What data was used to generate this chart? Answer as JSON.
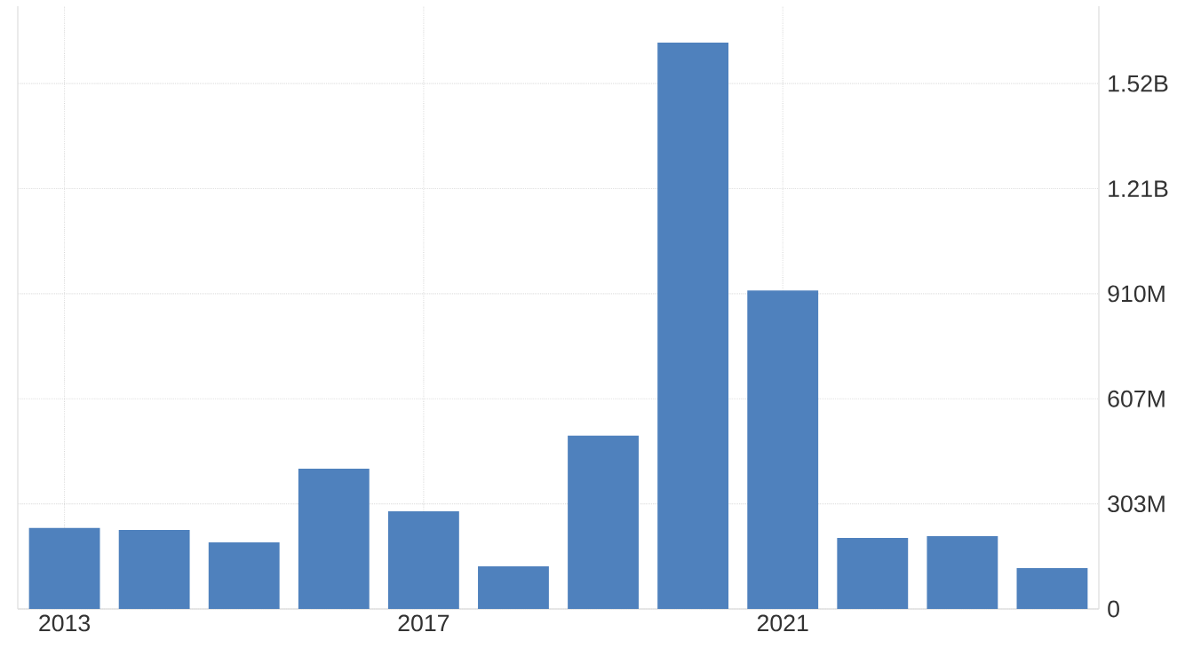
{
  "chart_data": {
    "type": "bar",
    "categories": [
      "2013",
      null,
      null,
      null,
      "2017",
      null,
      null,
      null,
      "2021",
      null,
      null,
      null
    ],
    "values": [
      234000000,
      228000000,
      192000000,
      405000000,
      282000000,
      123000000,
      500000000,
      1635000000,
      919000000,
      205000000,
      210000000,
      118000000
    ],
    "color": "#4f81bd",
    "ylim": [
      0,
      1740000000
    ],
    "yticks": [
      0,
      {
        "value": 303300000,
        "label": "303M"
      },
      {
        "value": 606700000,
        "label": "607M"
      },
      {
        "value": 910000000,
        "label": "910M"
      },
      {
        "value": 1213300000,
        "label": "1.21B"
      },
      {
        "value": 1516700000,
        "label": "1.52B"
      }
    ],
    "grid": true
  }
}
